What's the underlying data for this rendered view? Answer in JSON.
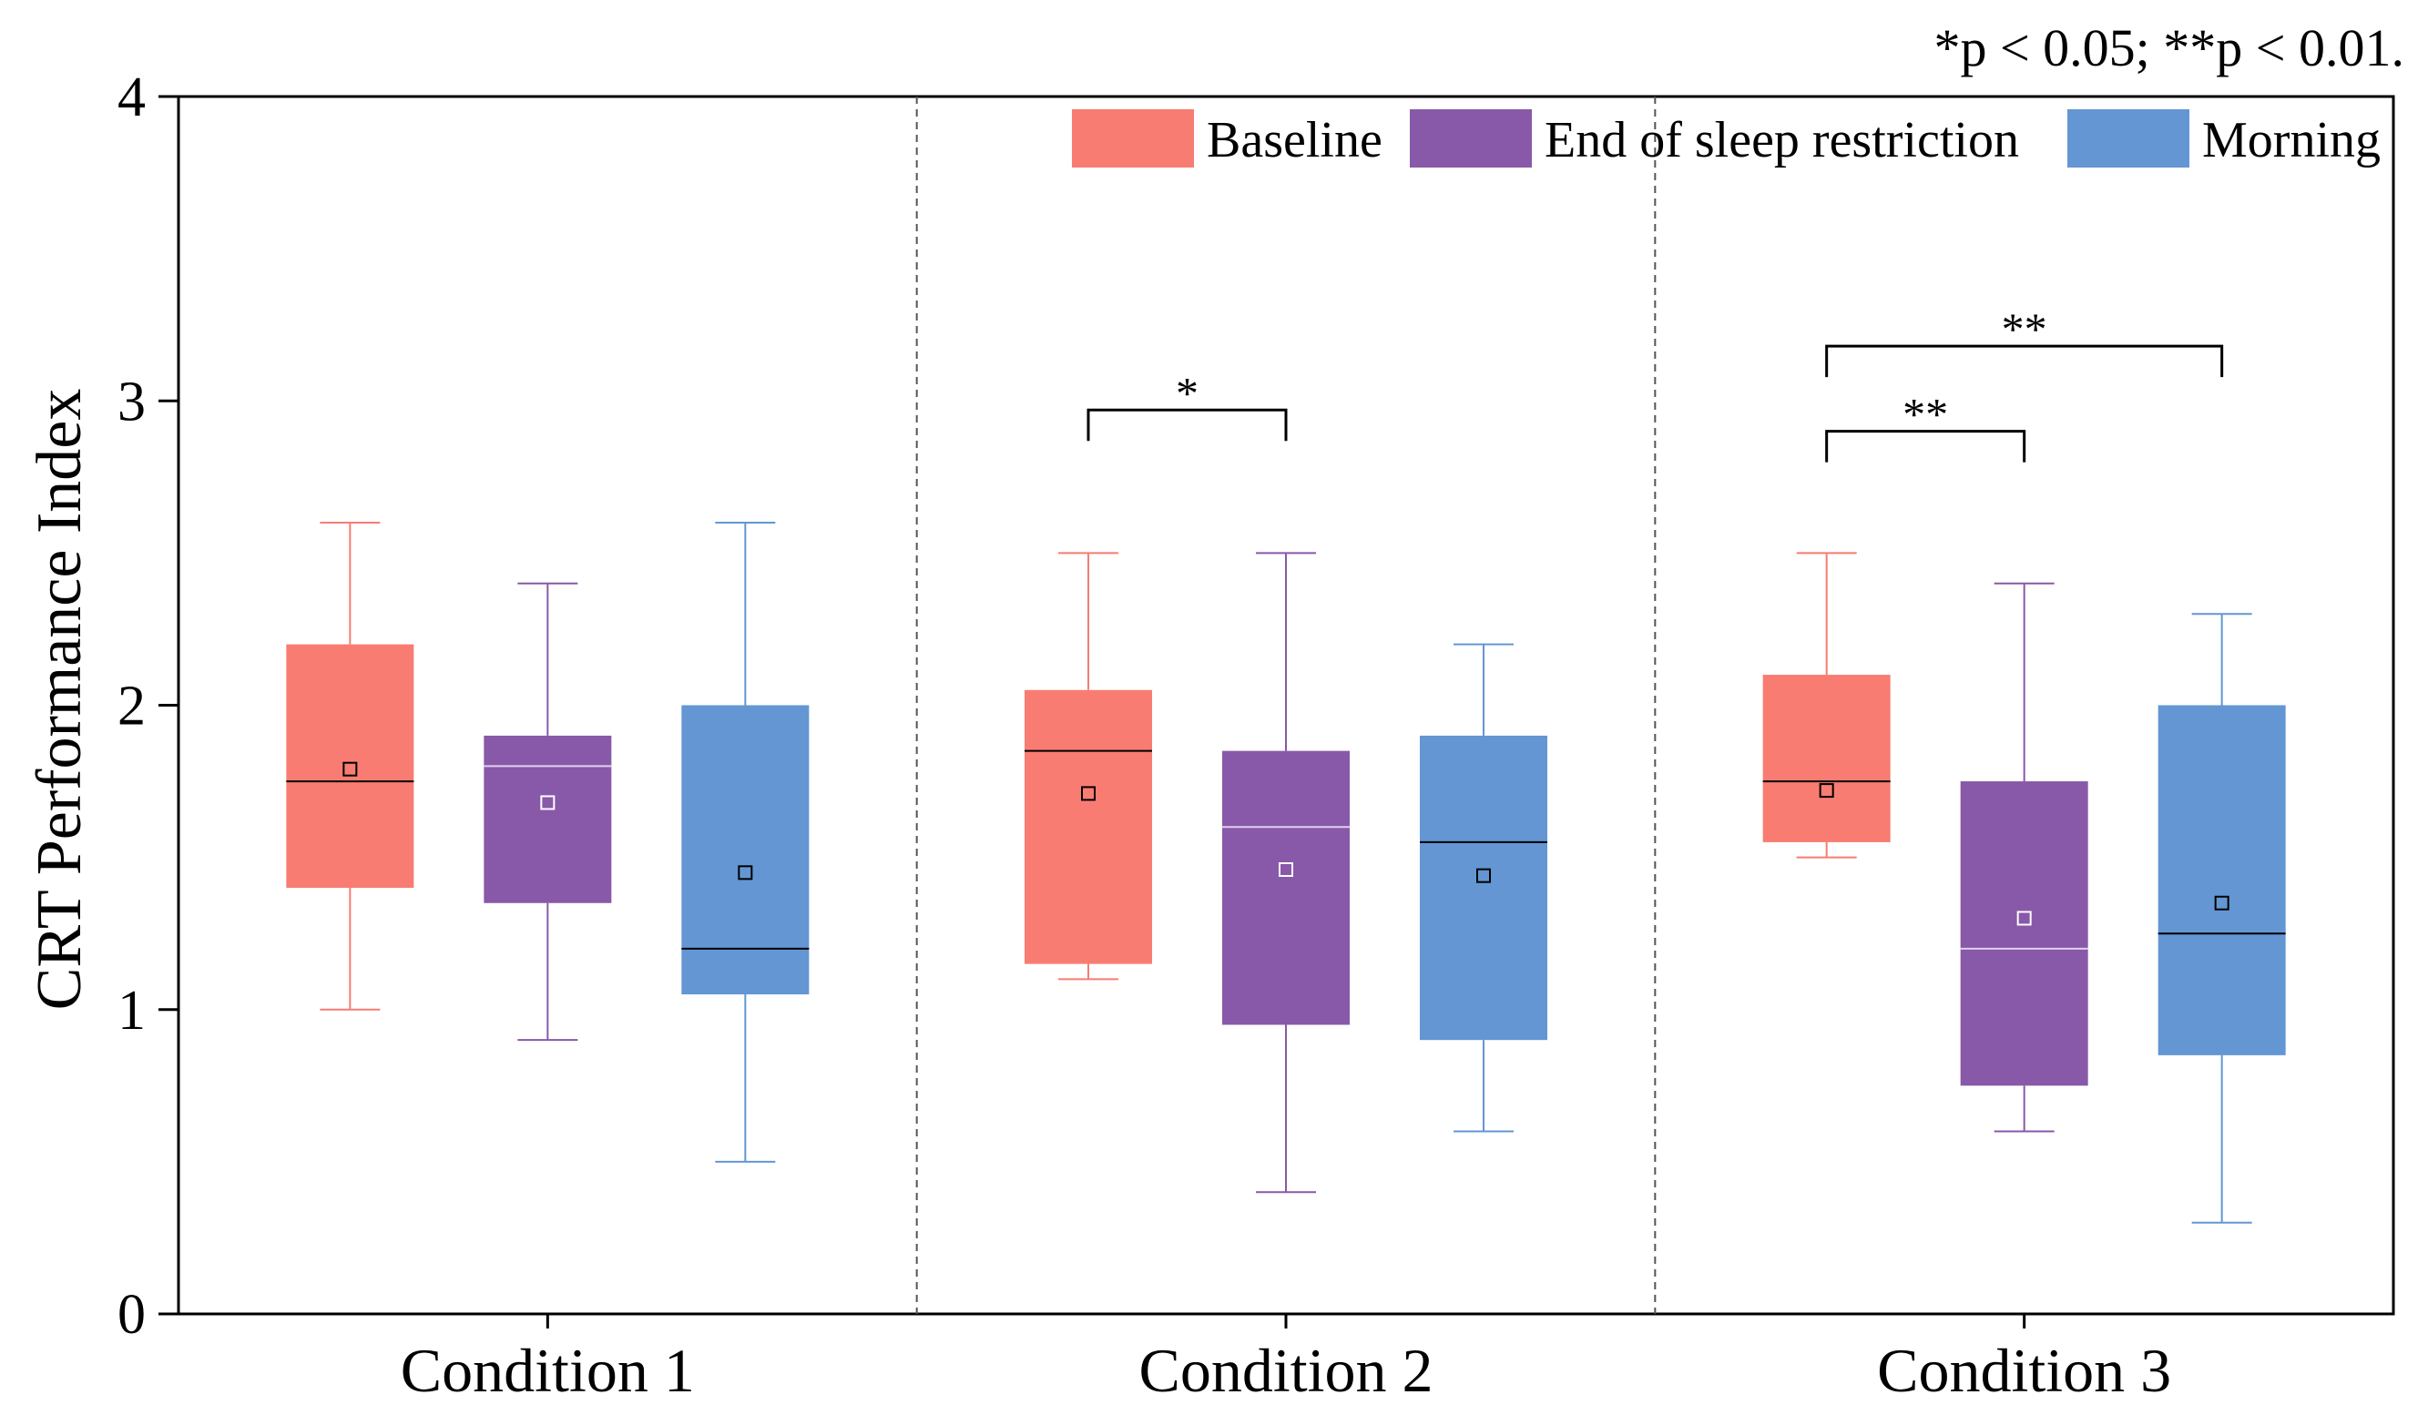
{
  "note": "*p < 0.05; **p < 0.01.",
  "chart_data": {
    "type": "box",
    "title": "",
    "xlabel": "",
    "ylabel": "CRT Performance Index",
    "ylim": [
      0,
      4
    ],
    "yticks": [
      0,
      1,
      2,
      3,
      4
    ],
    "categories": [
      "Condition 1",
      "Condition 2",
      "Condition 3"
    ],
    "legend_position": "top-right",
    "series": [
      {
        "name": "Baseline",
        "color": "#F87C72",
        "median_color": "#000000",
        "boxes": [
          {
            "whisker_low": 1.0,
            "q1": 1.4,
            "median": 1.75,
            "q3": 2.2,
            "whisker_high": 2.6,
            "mean": 1.79
          },
          {
            "whisker_low": 1.1,
            "q1": 1.15,
            "median": 1.85,
            "q3": 2.05,
            "whisker_high": 2.5,
            "mean": 1.71
          },
          {
            "whisker_low": 1.5,
            "q1": 1.55,
            "median": 1.75,
            "q3": 2.1,
            "whisker_high": 2.5,
            "mean": 1.72
          }
        ]
      },
      {
        "name": "End of sleep restriction",
        "color": "#8859A8",
        "median_color": "#E0D0EE",
        "boxes": [
          {
            "whisker_low": 0.9,
            "q1": 1.35,
            "median": 1.8,
            "q3": 1.9,
            "whisker_high": 2.4,
            "mean": 1.68
          },
          {
            "whisker_low": 0.4,
            "q1": 0.95,
            "median": 1.6,
            "q3": 1.85,
            "whisker_high": 2.5,
            "mean": 1.46
          },
          {
            "whisker_low": 0.6,
            "q1": 0.75,
            "median": 1.2,
            "q3": 1.75,
            "whisker_high": 2.4,
            "mean": 1.3
          }
        ]
      },
      {
        "name": "Morning",
        "color": "#6396D3",
        "median_color": "#000000",
        "boxes": [
          {
            "whisker_low": 0.5,
            "q1": 1.05,
            "median": 1.2,
            "q3": 2.0,
            "whisker_high": 2.6,
            "mean": 1.45
          },
          {
            "whisker_low": 0.6,
            "q1": 0.9,
            "median": 1.55,
            "q3": 1.9,
            "whisker_high": 2.2,
            "mean": 1.44
          },
          {
            "whisker_low": 0.3,
            "q1": 0.85,
            "median": 1.25,
            "q3": 2.0,
            "whisker_high": 2.3,
            "mean": 1.35
          }
        ]
      }
    ],
    "significance": [
      {
        "condition": 1,
        "from_series": 0,
        "to_series": 1,
        "label": "*",
        "bracket_y": 2.97
      },
      {
        "condition": 2,
        "from_series": 0,
        "to_series": 1,
        "label": "**",
        "bracket_y": 2.9
      },
      {
        "condition": 2,
        "from_series": 0,
        "to_series": 2,
        "label": "**",
        "bracket_y": 3.18
      }
    ]
  }
}
